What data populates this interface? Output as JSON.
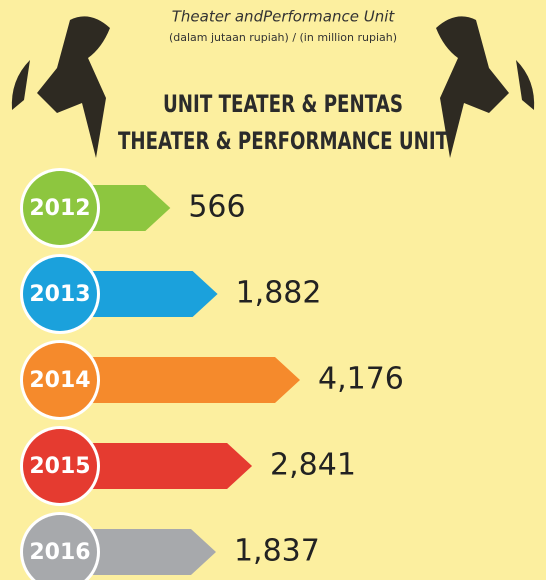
{
  "chart_data": {
    "type": "bar",
    "header": "Theater andPerformance Unit",
    "unit_note": "(dalam jutaan rupiah) / (in million rupiah)",
    "title": "UNIT TEATER & PENTAS",
    "subtitle": "THEATER & PERFORMANCE UNIT",
    "categories": [
      "2012",
      "2013",
      "2014",
      "2015",
      "2016"
    ],
    "values": [
      566,
      1882,
      4176,
      2841,
      1837
    ],
    "value_labels": [
      "566",
      "1,882",
      "4,176",
      "2,841",
      "1,837"
    ],
    "colors": [
      "#8dc63f",
      "#1ba1dc",
      "#f58a2c",
      "#e53b30",
      "#a7a9ac"
    ]
  }
}
